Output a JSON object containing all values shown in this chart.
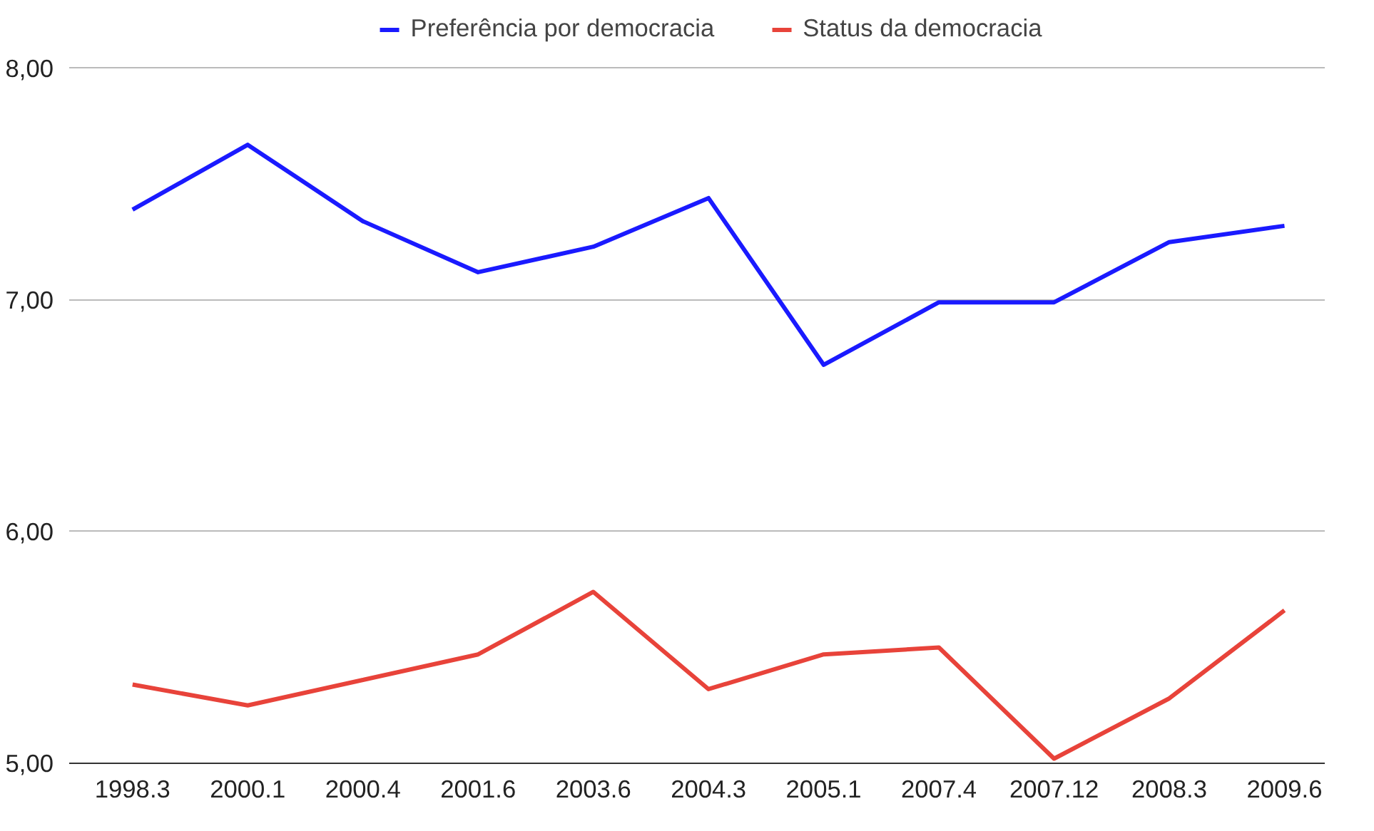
{
  "chart_data": {
    "type": "line",
    "categories": [
      "1998.3",
      "2000.1",
      "2000.4",
      "2001.6",
      "2003.6",
      "2004.3",
      "2005.1",
      "2007.4",
      "2007.12",
      "2008.3",
      "2009.6"
    ],
    "series": [
      {
        "name": "Preferência por democracia",
        "color": "#1a1aff",
        "values": [
          7.39,
          7.67,
          7.34,
          7.12,
          7.23,
          7.44,
          6.72,
          6.99,
          6.99,
          7.25,
          7.32
        ]
      },
      {
        "name": "Status da democracia",
        "color": "#e8433a",
        "values": [
          5.34,
          5.25,
          5.36,
          5.47,
          5.74,
          5.32,
          5.47,
          5.5,
          5.02,
          5.28,
          5.66
        ]
      }
    ],
    "ylim": [
      5,
      8
    ],
    "yticks": [
      {
        "value": 5,
        "label": "5,00"
      },
      {
        "value": 6,
        "label": "6,00"
      },
      {
        "value": 7,
        "label": "7,00"
      },
      {
        "value": 8,
        "label": "8,00"
      }
    ],
    "grid": "y",
    "legend": "top",
    "marker": "none",
    "line_style": "solid"
  }
}
